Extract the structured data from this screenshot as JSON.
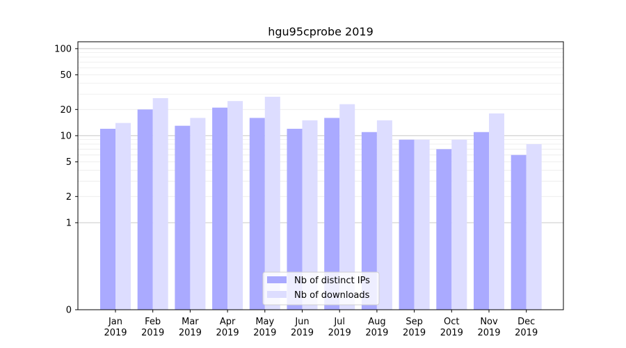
{
  "chart_data": {
    "type": "bar",
    "title": "hgu95cprobe 2019",
    "categories": [
      [
        "Jan",
        "2019"
      ],
      [
        "Feb",
        "2019"
      ],
      [
        "Mar",
        "2019"
      ],
      [
        "Apr",
        "2019"
      ],
      [
        "May",
        "2019"
      ],
      [
        "Jun",
        "2019"
      ],
      [
        "Jul",
        "2019"
      ],
      [
        "Aug",
        "2019"
      ],
      [
        "Sep",
        "2019"
      ],
      [
        "Oct",
        "2019"
      ],
      [
        "Nov",
        "2019"
      ],
      [
        "Dec",
        "2019"
      ]
    ],
    "series": [
      {
        "name": "Nb of distinct IPs",
        "color": "#aaaaff",
        "values": [
          12,
          20,
          13,
          21,
          16,
          12,
          16,
          11,
          9,
          7,
          11,
          6
        ]
      },
      {
        "name": "Nb of downloads",
        "color": "#ddddff",
        "values": [
          14,
          27,
          16,
          25,
          28,
          15,
          23,
          15,
          9,
          9,
          18,
          8
        ]
      }
    ],
    "y_scale": "symlog",
    "y_ticks": [
      0,
      1,
      2,
      5,
      10,
      20,
      50,
      100
    ],
    "ylim": [
      0,
      120
    ],
    "xlabel": "",
    "ylabel": "",
    "legend_position": "lower center",
    "grid": "y"
  }
}
